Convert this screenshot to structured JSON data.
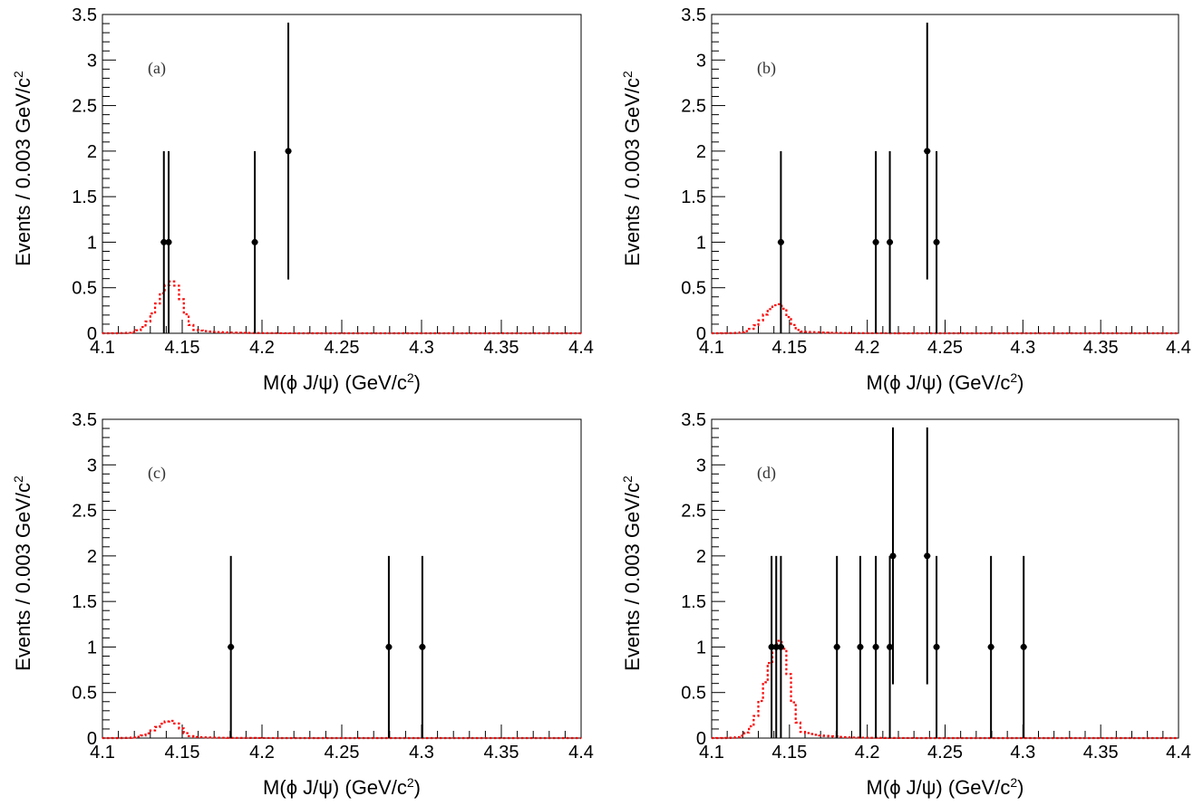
{
  "chart_data": [
    {
      "type": "scatter",
      "panel_label": "(a)",
      "xlabel": "M(ϕ J/ψ) (GeV/c^2)",
      "ylabel": "Events / 0.003 GeV/c^2",
      "xlim": [
        4.1,
        4.4
      ],
      "ylim": [
        0,
        3.5
      ],
      "x_ticks": [
        "4.1",
        "4.15",
        "4.2",
        "4.25",
        "4.3",
        "4.35",
        "4.4"
      ],
      "y_ticks": [
        "0",
        "0.5",
        "1",
        "1.5",
        "2",
        "2.5",
        "3",
        "3.5"
      ],
      "data_points": [
        {
          "x": 4.1385,
          "y": 1,
          "yerr_low": 1,
          "yerr_high": 1
        },
        {
          "x": 4.1415,
          "y": 1,
          "yerr_low": 1,
          "yerr_high": 1
        },
        {
          "x": 4.1955,
          "y": 1,
          "yerr_low": 1,
          "yerr_high": 1
        },
        {
          "x": 4.2165,
          "y": 2,
          "yerr_low": 1.41,
          "yerr_high": 1.41
        }
      ],
      "signal_curve": {
        "color": "#ff0000",
        "style": "dotted",
        "peak_x": 4.144,
        "peak_y": 0.57,
        "sigma_left": 0.009,
        "sigma_right": 0.006,
        "tail_decay": 0.014
      }
    },
    {
      "type": "scatter",
      "panel_label": "(b)",
      "xlabel": "M(ϕ J/ψ) (GeV/c^2)",
      "ylabel": "Events / 0.003 GeV/c^2",
      "xlim": [
        4.1,
        4.4
      ],
      "ylim": [
        0,
        3.5
      ],
      "x_ticks": [
        "4.1",
        "4.15",
        "4.2",
        "4.25",
        "4.3",
        "4.35",
        "4.4"
      ],
      "y_ticks": [
        "0",
        "0.5",
        "1",
        "1.5",
        "2",
        "2.5",
        "3",
        "3.5"
      ],
      "data_points": [
        {
          "x": 4.1445,
          "y": 1,
          "yerr_low": 1,
          "yerr_high": 1
        },
        {
          "x": 4.2055,
          "y": 1,
          "yerr_low": 1,
          "yerr_high": 1
        },
        {
          "x": 4.2145,
          "y": 1,
          "yerr_low": 1,
          "yerr_high": 1
        },
        {
          "x": 4.2385,
          "y": 2,
          "yerr_low": 1.41,
          "yerr_high": 1.41
        },
        {
          "x": 4.2445,
          "y": 1,
          "yerr_low": 1,
          "yerr_high": 1
        }
      ],
      "signal_curve": {
        "color": "#ff0000",
        "style": "dotted",
        "peak_x": 4.143,
        "peak_y": 0.32,
        "sigma_left": 0.009,
        "sigma_right": 0.006,
        "tail_decay": 0.014
      }
    },
    {
      "type": "scatter",
      "panel_label": "(c)",
      "xlabel": "M(ϕ J/ψ) (GeV/c^2)",
      "ylabel": "Events / 0.003 GeV/c^2",
      "xlim": [
        4.1,
        4.4
      ],
      "ylim": [
        0,
        3.5
      ],
      "x_ticks": [
        "4.1",
        "4.15",
        "4.2",
        "4.25",
        "4.3",
        "4.35",
        "4.4"
      ],
      "y_ticks": [
        "0",
        "0.5",
        "1",
        "1.5",
        "2",
        "2.5",
        "3",
        "3.5"
      ],
      "data_points": [
        {
          "x": 4.1805,
          "y": 1,
          "yerr_low": 1,
          "yerr_high": 1
        },
        {
          "x": 4.2795,
          "y": 1,
          "yerr_low": 1,
          "yerr_high": 1
        },
        {
          "x": 4.3005,
          "y": 1,
          "yerr_low": 1,
          "yerr_high": 1
        }
      ],
      "signal_curve": {
        "color": "#ff0000",
        "style": "dotted",
        "peak_x": 4.143,
        "peak_y": 0.19,
        "sigma_left": 0.009,
        "sigma_right": 0.006,
        "tail_decay": 0.014
      }
    },
    {
      "type": "scatter",
      "panel_label": "(d)",
      "xlabel": "M(ϕ J/ψ) (GeV/c^2)",
      "ylabel": "Events / 0.003 GeV/c^2",
      "xlim": [
        4.1,
        4.4
      ],
      "ylim": [
        0,
        3.5
      ],
      "x_ticks": [
        "4.1",
        "4.15",
        "4.2",
        "4.25",
        "4.3",
        "4.35",
        "4.4"
      ],
      "y_ticks": [
        "0",
        "0.5",
        "1",
        "1.5",
        "2",
        "2.5",
        "3",
        "3.5"
      ],
      "data_points": [
        {
          "x": 4.1385,
          "y": 1,
          "yerr_low": 1,
          "yerr_high": 1
        },
        {
          "x": 4.1415,
          "y": 1,
          "yerr_low": 1,
          "yerr_high": 1
        },
        {
          "x": 4.1445,
          "y": 1,
          "yerr_low": 1,
          "yerr_high": 1
        },
        {
          "x": 4.1805,
          "y": 1,
          "yerr_low": 1,
          "yerr_high": 1
        },
        {
          "x": 4.1955,
          "y": 1,
          "yerr_low": 1,
          "yerr_high": 1
        },
        {
          "x": 4.2055,
          "y": 1,
          "yerr_low": 1,
          "yerr_high": 1
        },
        {
          "x": 4.2145,
          "y": 1,
          "yerr_low": 1,
          "yerr_high": 1
        },
        {
          "x": 4.2165,
          "y": 2,
          "yerr_low": 1.41,
          "yerr_high": 1.41
        },
        {
          "x": 4.2385,
          "y": 2,
          "yerr_low": 1.41,
          "yerr_high": 1.41
        },
        {
          "x": 4.2445,
          "y": 1,
          "yerr_low": 1,
          "yerr_high": 1
        },
        {
          "x": 4.2795,
          "y": 1,
          "yerr_low": 1,
          "yerr_high": 1
        },
        {
          "x": 4.3005,
          "y": 1,
          "yerr_low": 1,
          "yerr_high": 1
        }
      ],
      "signal_curve": {
        "color": "#ff0000",
        "style": "dotted",
        "peak_x": 4.144,
        "peak_y": 1.07,
        "sigma_left": 0.009,
        "sigma_right": 0.006,
        "tail_decay": 0.014
      }
    }
  ]
}
